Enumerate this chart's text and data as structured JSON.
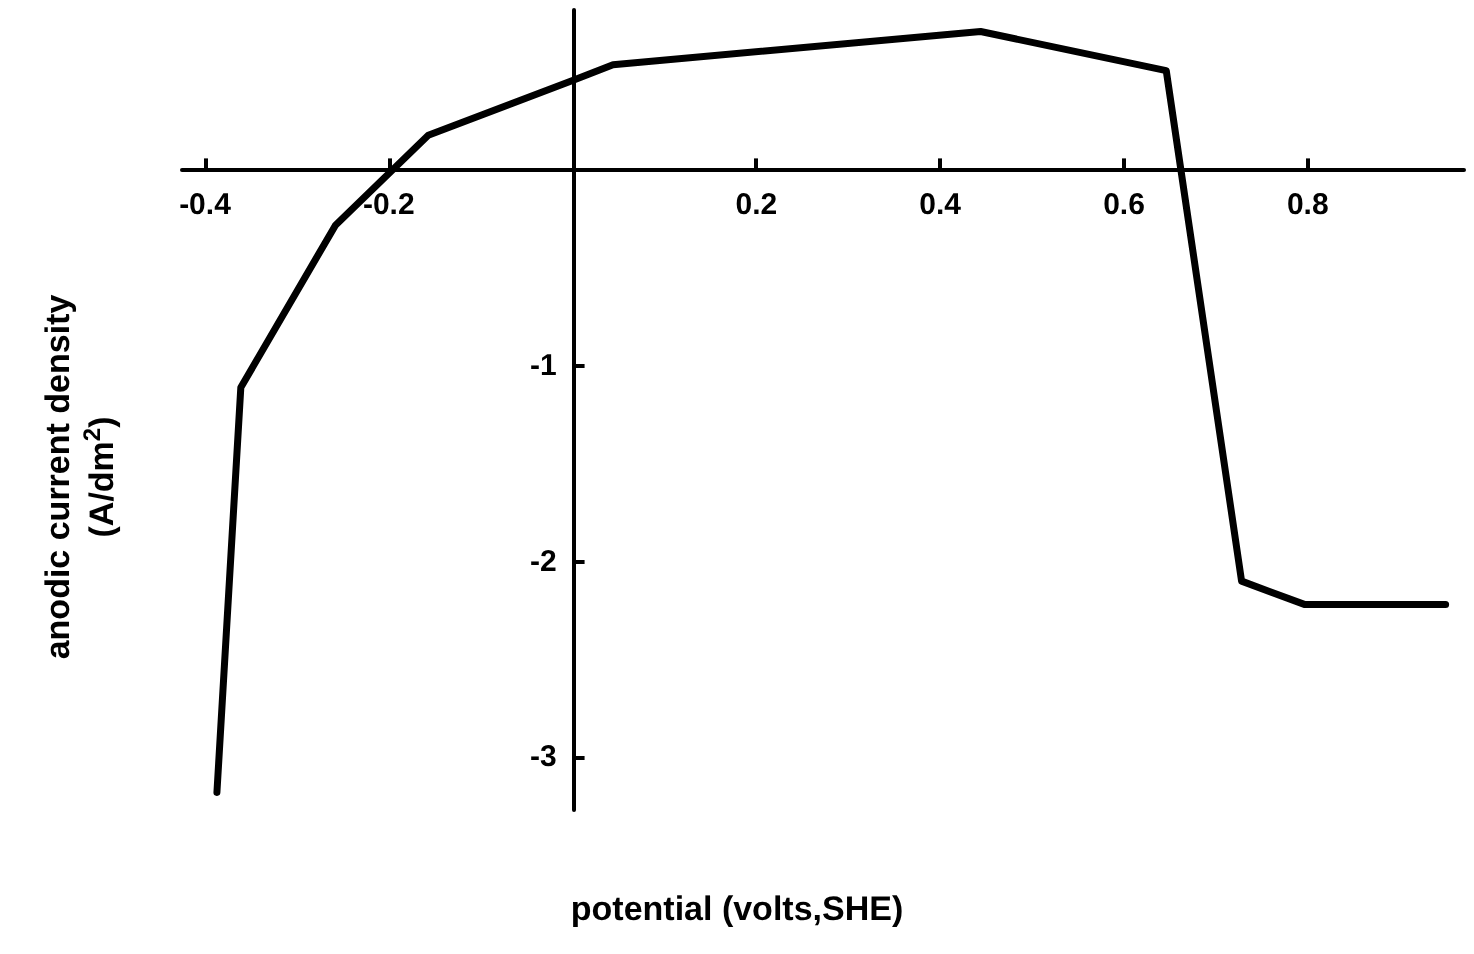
{
  "chart_data": {
    "type": "line",
    "xlabel": "potential (volts,SHE)",
    "ylabel": "anodic current density\n(A/dm$^{2}$)",
    "x": [
      -0.387,
      -0.361,
      -0.258,
      -0.157,
      0,
      0.044,
      0.444,
      0.646,
      0.728,
      0.797,
      0.95
    ],
    "series": [
      {
        "color": "#000000",
        "values": [
          -3.18,
          -1.11,
          -0.28,
          0.18,
          0.46,
          0.54,
          0.71,
          0.51,
          -2.1,
          -2.22,
          -2.22
        ]
      }
    ],
    "xlim": [
      -0.425,
      0.97
    ],
    "ylim": [
      -3.27,
      0.82
    ],
    "xticks": [
      -0.4,
      -0.2,
      0.2,
      0.4,
      0.6,
      0.8
    ],
    "yticks": [
      -3,
      -2,
      -1
    ],
    "grid": false,
    "marker": "none",
    "line_style": "solid"
  }
}
